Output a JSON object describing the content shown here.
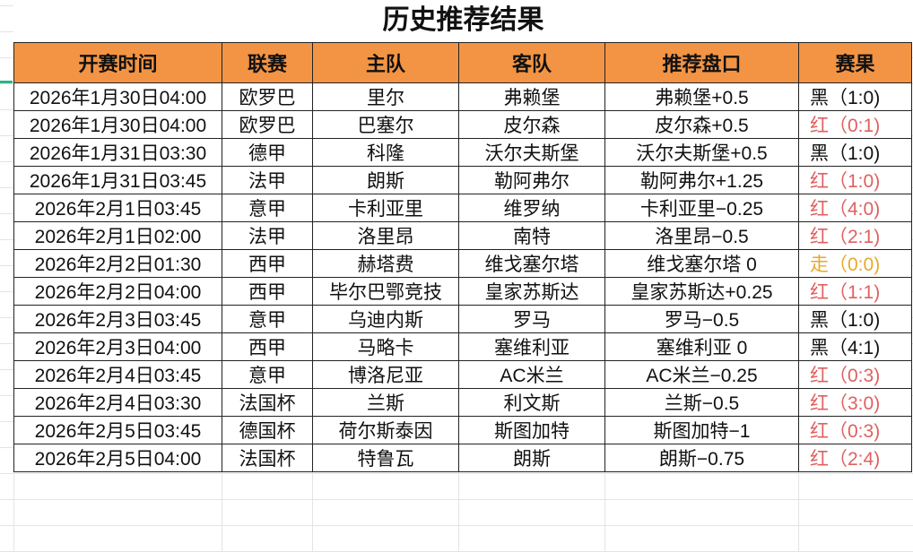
{
  "title": "历史推荐结果",
  "headers": [
    "开赛时间",
    "联赛",
    "主队",
    "客队",
    "推荐盘口",
    "赛果"
  ],
  "result_colors": {
    "红": "#e06060",
    "黑": "#111111",
    "走": "#e8a92a"
  },
  "rows": [
    {
      "time": "2026年1月30日04:00",
      "league": "欧罗巴",
      "home": "里尔",
      "away": "弗赖堡",
      "pick": "弗赖堡+0.5",
      "result": "黑（1:0)",
      "status": "black"
    },
    {
      "time": "2026年1月30日04:00",
      "league": "欧罗巴",
      "home": "巴塞尔",
      "away": "皮尔森",
      "pick": "皮尔森+0.5",
      "result": "红（0:1)",
      "status": "red"
    },
    {
      "time": "2026年1月31日03:30",
      "league": "德甲",
      "home": "科隆",
      "away": "沃尔夫斯堡",
      "pick": "沃尔夫斯堡+0.5",
      "result": "黑（1:0)",
      "status": "black"
    },
    {
      "time": "2026年1月31日03:45",
      "league": "法甲",
      "home": "朗斯",
      "away": "勒阿弗尔",
      "pick": "勒阿弗尔+1.25",
      "result": "红（1:0)",
      "status": "red"
    },
    {
      "time": "2026年2月1日03:45",
      "league": "意甲",
      "home": "卡利亚里",
      "away": "维罗纳",
      "pick": "卡利亚里−0.25",
      "result": "红（4:0)",
      "status": "red"
    },
    {
      "time": "2026年2月1日02:00",
      "league": "法甲",
      "home": "洛里昂",
      "away": "南特",
      "pick": "洛里昂−0.5",
      "result": "红（2:1)",
      "status": "red"
    },
    {
      "time": "2026年2月2日01:30",
      "league": "西甲",
      "home": "赫塔费",
      "away": "维戈塞尔塔",
      "pick": "维戈塞尔塔 0",
      "result": "走（0:0)",
      "status": "yellow"
    },
    {
      "time": "2026年2月2日04:00",
      "league": "西甲",
      "home": "毕尔巴鄂竞技",
      "away": "皇家苏斯达",
      "pick": "皇家苏斯达+0.25",
      "result": "红（1:1)",
      "status": "red"
    },
    {
      "time": "2026年2月3日03:45",
      "league": "意甲",
      "home": "乌迪内斯",
      "away": "罗马",
      "pick": "罗马−0.5",
      "result": "黑（1:0)",
      "status": "black"
    },
    {
      "time": "2026年2月3日04:00",
      "league": "西甲",
      "home": "马略卡",
      "away": "塞维利亚",
      "pick": "塞维利亚 0",
      "result": "黑（4:1)",
      "status": "black"
    },
    {
      "time": "2026年2月4日03:45",
      "league": "意甲",
      "home": "博洛尼亚",
      "away": "AC米兰",
      "pick": "AC米兰−0.25",
      "result": "红（0:3)",
      "status": "red"
    },
    {
      "time": "2026年2月4日03:30",
      "league": "法国杯",
      "home": "兰斯",
      "away": "利文斯",
      "pick": "兰斯−0.5",
      "result": "红（3:0)",
      "status": "red"
    },
    {
      "time": "2026年2月5日03:45",
      "league": "德国杯",
      "home": "荷尔斯泰因",
      "away": "斯图加特",
      "pick": "斯图加特−1",
      "result": "红（0:3)",
      "status": "red"
    },
    {
      "time": "2026年2月5日04:00",
      "league": "法国杯",
      "home": "特鲁瓦",
      "away": "朗斯",
      "pick": "朗斯−0.75",
      "result": "红（2:4)",
      "status": "red"
    }
  ]
}
